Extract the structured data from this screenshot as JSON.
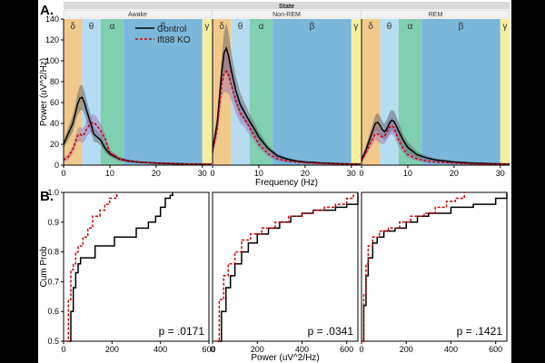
{
  "figure": {
    "panel_a_label": "A.",
    "panel_b_label": "B.",
    "state_header": "State",
    "legend": {
      "control": "Control",
      "ko": "Ift88 KO"
    },
    "colors": {
      "control": "#000000",
      "ko": "#cc0000",
      "delta": "#f1c98a",
      "theta": "#b6dcf2",
      "alpha": "#80cfb0",
      "beta": "#7ab7db",
      "gamma": "#f7ee9c",
      "header": "#d9d9d9",
      "subheader": "#f2f2f2",
      "control_band": "#555555",
      "ko_band": "#9b6bb0"
    }
  },
  "chart_data": [
    {
      "type": "line",
      "panel": "A",
      "title": "Awake",
      "xlabel": "Frequency (Hz)",
      "ylabel": "Power (uV^2/Hz)",
      "xlim": [
        0,
        32
      ],
      "ylim": [
        0,
        140
      ],
      "xticks": [
        0,
        10,
        20,
        30
      ],
      "yticks": [
        0,
        20,
        40,
        60,
        80,
        100,
        120,
        140
      ],
      "bands": [
        {
          "name": "δ",
          "from": 0,
          "to": 4
        },
        {
          "name": "θ",
          "from": 4,
          "to": 8
        },
        {
          "name": "α",
          "from": 8,
          "to": 13
        },
        {
          "name": "β",
          "from": 13,
          "to": 30
        },
        {
          "name": "γ",
          "from": 30,
          "to": 32
        }
      ],
      "x": [
        0,
        1,
        2,
        3,
        3.5,
        4,
        4.5,
        5,
        5.5,
        6,
        6.5,
        7,
        8,
        9,
        10,
        12,
        14,
        16,
        18,
        20,
        22,
        24,
        26,
        28,
        30,
        32
      ],
      "series": [
        {
          "name": "Control",
          "values": [
            20,
            30,
            40,
            58,
            64,
            65,
            60,
            52,
            45,
            38,
            30,
            28,
            24,
            16,
            11,
            6,
            4,
            3,
            2.5,
            2,
            1.7,
            1.4,
            1.2,
            1,
            0.9,
            0.8
          ],
          "ci": [
            4,
            6,
            8,
            10,
            12,
            12,
            11,
            10,
            9,
            8,
            7,
            6,
            5,
            4,
            3,
            2,
            1.5,
            1,
            1,
            1,
            1,
            1,
            1,
            1,
            1,
            1
          ]
        },
        {
          "name": "Ift88 KO",
          "values": [
            5,
            8,
            15,
            28,
            30,
            28,
            30,
            35,
            38,
            40,
            41,
            39,
            33,
            25,
            12,
            6,
            4,
            3,
            2.4,
            2,
            1.6,
            1.3,
            1.1,
            1,
            0.9,
            0.8
          ],
          "ci": [
            2,
            3,
            4,
            6,
            7,
            7,
            7,
            8,
            8,
            8,
            8,
            8,
            7,
            5,
            3,
            2,
            1.5,
            1,
            1,
            1,
            1,
            1,
            1,
            1,
            1,
            1
          ]
        }
      ]
    },
    {
      "type": "line",
      "panel": "A",
      "title": "Non-REM",
      "xlabel": "Frequency (Hz)",
      "ylabel": "Power (uV^2/Hz)",
      "xlim": [
        0,
        32
      ],
      "ylim": [
        0,
        140
      ],
      "xticks": [
        0,
        10,
        20,
        30
      ],
      "bands": [
        {
          "name": "δ",
          "from": 0,
          "to": 4
        },
        {
          "name": "θ",
          "from": 4,
          "to": 8
        },
        {
          "name": "α",
          "from": 8,
          "to": 13
        },
        {
          "name": "β",
          "from": 13,
          "to": 30
        },
        {
          "name": "γ",
          "from": 30,
          "to": 32
        }
      ],
      "x": [
        0,
        1,
        2,
        2.5,
        3,
        3.5,
        4,
        5,
        6,
        7,
        8,
        9,
        10,
        12,
        14,
        16,
        18,
        20,
        22,
        24,
        26,
        28,
        30,
        32
      ],
      "series": [
        {
          "name": "Control",
          "values": [
            15,
            40,
            90,
            108,
            112,
            104,
            92,
            72,
            58,
            50,
            42,
            35,
            27,
            16,
            9,
            6,
            4,
            3,
            2.5,
            2,
            1.6,
            1.3,
            1.1,
            1
          ],
          "ci": [
            4,
            8,
            15,
            20,
            24,
            22,
            18,
            14,
            11,
            9,
            7,
            6,
            5,
            3,
            2,
            1.5,
            1,
            1,
            1,
            1,
            1,
            1,
            1,
            1
          ]
        },
        {
          "name": "Ift88 KO",
          "values": [
            12,
            35,
            78,
            88,
            90,
            86,
            78,
            62,
            50,
            44,
            36,
            28,
            20,
            11,
            6,
            4,
            3,
            2.3,
            1.9,
            1.6,
            1.3,
            1.1,
            1,
            0.9
          ],
          "ci": [
            4,
            8,
            14,
            18,
            20,
            18,
            15,
            12,
            10,
            8,
            7,
            5,
            4,
            3,
            2,
            1.5,
            1,
            1,
            1,
            1,
            1,
            1,
            1,
            1
          ]
        }
      ]
    },
    {
      "type": "line",
      "panel": "A",
      "title": "REM",
      "xlabel": "Frequency (Hz)",
      "ylabel": "Power (uV^2/Hz)",
      "xlim": [
        0,
        32
      ],
      "ylim": [
        0,
        140
      ],
      "xticks": [
        0,
        10,
        20,
        30
      ],
      "bands": [
        {
          "name": "δ",
          "from": 0,
          "to": 4
        },
        {
          "name": "θ",
          "from": 4,
          "to": 8
        },
        {
          "name": "α",
          "from": 8,
          "to": 13
        },
        {
          "name": "β",
          "from": 13,
          "to": 30
        },
        {
          "name": "γ",
          "from": 30,
          "to": 32
        }
      ],
      "x": [
        0,
        1,
        2,
        3,
        3.5,
        4,
        4.5,
        5,
        5.5,
        6,
        6.5,
        7,
        7.5,
        8,
        9,
        10,
        12,
        14,
        16,
        18,
        20,
        22,
        24,
        26,
        28,
        30,
        32
      ],
      "series": [
        {
          "name": "Control",
          "values": [
            5,
            15,
            28,
            40,
            41,
            38,
            34,
            32,
            35,
            40,
            43,
            42,
            38,
            33,
            24,
            17,
            10,
            7,
            5,
            4,
            3,
            2.5,
            2,
            1.7,
            1.4,
            1.2,
            1
          ],
          "ci": [
            2,
            4,
            6,
            8,
            9,
            9,
            8,
            8,
            9,
            10,
            10,
            10,
            9,
            8,
            6,
            5,
            3,
            2,
            1.5,
            1,
            1,
            1,
            1,
            1,
            1,
            1,
            1
          ]
        },
        {
          "name": "Ift88 KO",
          "values": [
            4,
            12,
            22,
            30,
            30,
            28,
            27,
            28,
            32,
            36,
            38,
            36,
            30,
            24,
            16,
            10,
            6,
            4,
            3,
            2.5,
            2,
            1.6,
            1.3,
            1.1,
            1,
            0.9,
            0.8
          ],
          "ci": [
            2,
            3,
            5,
            6,
            7,
            7,
            7,
            7,
            8,
            8,
            8,
            8,
            7,
            6,
            4,
            3,
            2,
            1.5,
            1,
            1,
            1,
            1,
            1,
            1,
            1,
            1,
            1
          ]
        }
      ]
    },
    {
      "type": "line",
      "panel": "B",
      "step": true,
      "xlabel": "Power (uV^2/Hz)",
      "ylabel": "Cum Prob",
      "xlim": [
        0,
        600
      ],
      "ylim": [
        0.5,
        1.0
      ],
      "xticks": [
        0,
        200,
        400,
        600
      ],
      "yticks": [
        0.5,
        0.6,
        0.7,
        0.8,
        0.9,
        1.0
      ],
      "annotation": "p = .0171",
      "series": [
        {
          "name": "Control",
          "x": [
            20,
            30,
            40,
            50,
            60,
            70,
            80,
            100,
            130,
            170,
            210,
            260,
            280,
            300,
            330,
            350,
            380,
            400,
            420,
            440,
            450
          ],
          "values": [
            0.5,
            0.6,
            0.68,
            0.73,
            0.76,
            0.78,
            0.78,
            0.78,
            0.82,
            0.82,
            0.85,
            0.85,
            0.85,
            0.88,
            0.88,
            0.9,
            0.92,
            0.95,
            0.98,
            0.99,
            1.0
          ]
        },
        {
          "name": "Ift88 KO",
          "x": [
            10,
            20,
            30,
            40,
            50,
            60,
            80,
            100,
            120,
            150,
            170,
            190,
            200,
            220
          ],
          "values": [
            0.5,
            0.64,
            0.74,
            0.76,
            0.8,
            0.82,
            0.85,
            0.88,
            0.92,
            0.94,
            0.96,
            0.98,
            0.98,
            1.0
          ]
        }
      ]
    },
    {
      "type": "line",
      "panel": "B",
      "step": true,
      "xlabel": "Power (uV^2/Hz)",
      "ylabel": "Cum Prob",
      "xlim": [
        0,
        650
      ],
      "ylim": [
        0.5,
        1.0
      ],
      "xticks": [
        0,
        200,
        400,
        600
      ],
      "annotation": "p = .0341",
      "series": [
        {
          "name": "Control",
          "x": [
            20,
            40,
            60,
            80,
            100,
            130,
            160,
            200,
            250,
            300,
            350,
            400,
            450,
            500,
            550,
            600,
            650
          ],
          "values": [
            0.5,
            0.6,
            0.68,
            0.72,
            0.76,
            0.8,
            0.83,
            0.86,
            0.88,
            0.9,
            0.92,
            0.93,
            0.94,
            0.94,
            0.95,
            0.96,
            1.0
          ]
        },
        {
          "name": "Ift88 KO",
          "x": [
            15,
            30,
            50,
            70,
            100,
            130,
            170,
            220,
            280,
            340,
            400,
            450,
            500,
            550,
            600,
            630
          ],
          "values": [
            0.5,
            0.64,
            0.72,
            0.76,
            0.8,
            0.84,
            0.86,
            0.88,
            0.9,
            0.92,
            0.93,
            0.94,
            0.95,
            0.96,
            0.98,
            1.0
          ]
        }
      ]
    },
    {
      "type": "line",
      "panel": "B",
      "step": true,
      "xlabel": "Power (uV^2/Hz)",
      "ylabel": "Cum Prob",
      "xlim": [
        0,
        650
      ],
      "ylim": [
        0.5,
        1.0
      ],
      "xticks": [
        0,
        200,
        400,
        600
      ],
      "annotation": "p = .1421",
      "series": [
        {
          "name": "Control",
          "x": [
            5,
            10,
            20,
            30,
            50,
            70,
            100,
            150,
            200,
            250,
            300,
            400,
            500,
            600,
            650
          ],
          "values": [
            0.5,
            0.62,
            0.72,
            0.78,
            0.83,
            0.85,
            0.87,
            0.88,
            0.9,
            0.92,
            0.93,
            0.95,
            0.96,
            0.98,
            1.0
          ]
        },
        {
          "name": "Ift88 KO",
          "x": [
            5,
            10,
            20,
            30,
            50,
            80,
            120,
            170,
            220,
            280,
            330,
            380,
            420,
            460
          ],
          "values": [
            0.5,
            0.66,
            0.76,
            0.82,
            0.85,
            0.87,
            0.88,
            0.9,
            0.92,
            0.93,
            0.95,
            0.97,
            0.98,
            1.0
          ]
        }
      ]
    }
  ]
}
